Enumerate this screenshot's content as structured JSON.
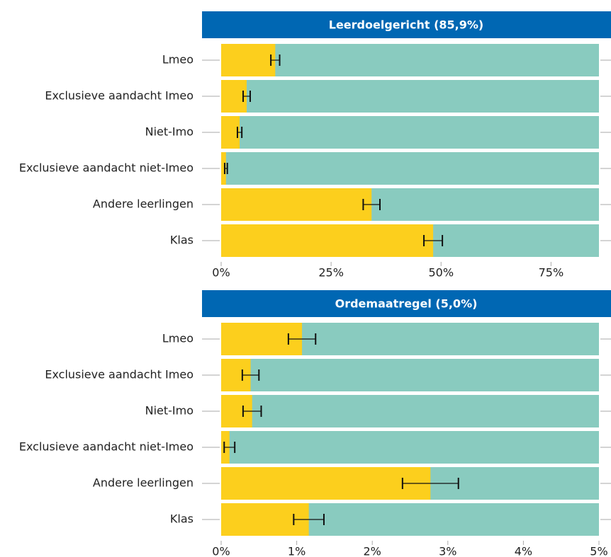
{
  "chart_data": [
    {
      "type": "bar",
      "title": "Leerdoelgericht (85,9%)",
      "categories": [
        "Lmeo",
        "Exclusieve aandacht Imeo",
        "Niet-Imo",
        "Exclusieve aandacht niet-Imeo",
        "Andere leerlingen",
        "Klas"
      ],
      "values": [
        12.3,
        5.8,
        4.2,
        1.1,
        34.2,
        48.2
      ],
      "errors": [
        1.0,
        0.8,
        0.5,
        0.3,
        1.9,
        2.1
      ],
      "color": "#fccf1d",
      "background_color": "#89cbbf",
      "xlim": [
        0,
        85.9
      ],
      "xticks": [
        {
          "value": 0,
          "label": "0%"
        },
        {
          "value": 25,
          "label": "25%"
        },
        {
          "value": 50,
          "label": "50%"
        },
        {
          "value": 75,
          "label": "75%"
        }
      ]
    },
    {
      "type": "bar",
      "title": "Ordemaatregel (5,0%)",
      "categories": [
        "Lmeo",
        "Exclusieve aandacht Imeo",
        "Niet-Imo",
        "Exclusieve aandacht niet-Imeo",
        "Andere leerlingen",
        "Klas"
      ],
      "values": [
        1.07,
        0.39,
        0.41,
        0.11,
        2.77,
        1.16
      ],
      "errors": [
        0.18,
        0.11,
        0.12,
        0.07,
        0.37,
        0.2
      ],
      "color": "#fccf1d",
      "background_color": "#89cbbf",
      "xlim": [
        0,
        5
      ],
      "xticks": [
        {
          "value": 0,
          "label": "0%"
        },
        {
          "value": 1,
          "label": "1%"
        },
        {
          "value": 2,
          "label": "2%"
        },
        {
          "value": 3,
          "label": "3%"
        },
        {
          "value": 4,
          "label": "4%"
        },
        {
          "value": 5,
          "label": "5%"
        }
      ]
    }
  ]
}
